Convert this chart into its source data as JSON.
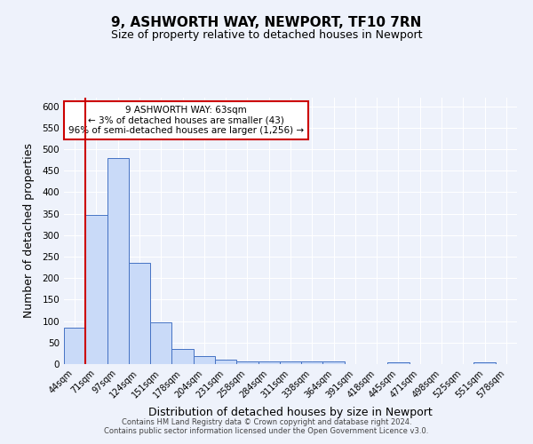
{
  "title_line1": "9, ASHWORTH WAY, NEWPORT, TF10 7RN",
  "title_line2": "Size of property relative to detached houses in Newport",
  "xlabel": "Distribution of detached houses by size in Newport",
  "ylabel": "Number of detached properties",
  "bar_labels": [
    "44sqm",
    "71sqm",
    "97sqm",
    "124sqm",
    "151sqm",
    "178sqm",
    "204sqm",
    "231sqm",
    "258sqm",
    "284sqm",
    "311sqm",
    "338sqm",
    "364sqm",
    "391sqm",
    "418sqm",
    "445sqm",
    "471sqm",
    "498sqm",
    "525sqm",
    "551sqm",
    "578sqm"
  ],
  "bar_values": [
    85,
    347,
    479,
    235,
    97,
    36,
    19,
    10,
    7,
    6,
    6,
    6,
    6,
    0,
    0,
    5,
    0,
    0,
    0,
    5,
    0
  ],
  "bar_color": "#c9daf8",
  "bar_edge_color": "#4472c4",
  "background_color": "#eef2fb",
  "grid_color": "#ffffff",
  "vline_color": "#cc0000",
  "ylim": [
    0,
    620
  ],
  "yticks": [
    0,
    50,
    100,
    150,
    200,
    250,
    300,
    350,
    400,
    450,
    500,
    550,
    600
  ],
  "annotation_title": "9 ASHWORTH WAY: 63sqm",
  "annotation_line2": "← 3% of detached houses are smaller (43)",
  "annotation_line3": "96% of semi-detached houses are larger (1,256) →",
  "annotation_box_color": "#ffffff",
  "annotation_border_color": "#cc0000",
  "footer_line1": "Contains HM Land Registry data © Crown copyright and database right 2024.",
  "footer_line2": "Contains public sector information licensed under the Open Government Licence v3.0."
}
